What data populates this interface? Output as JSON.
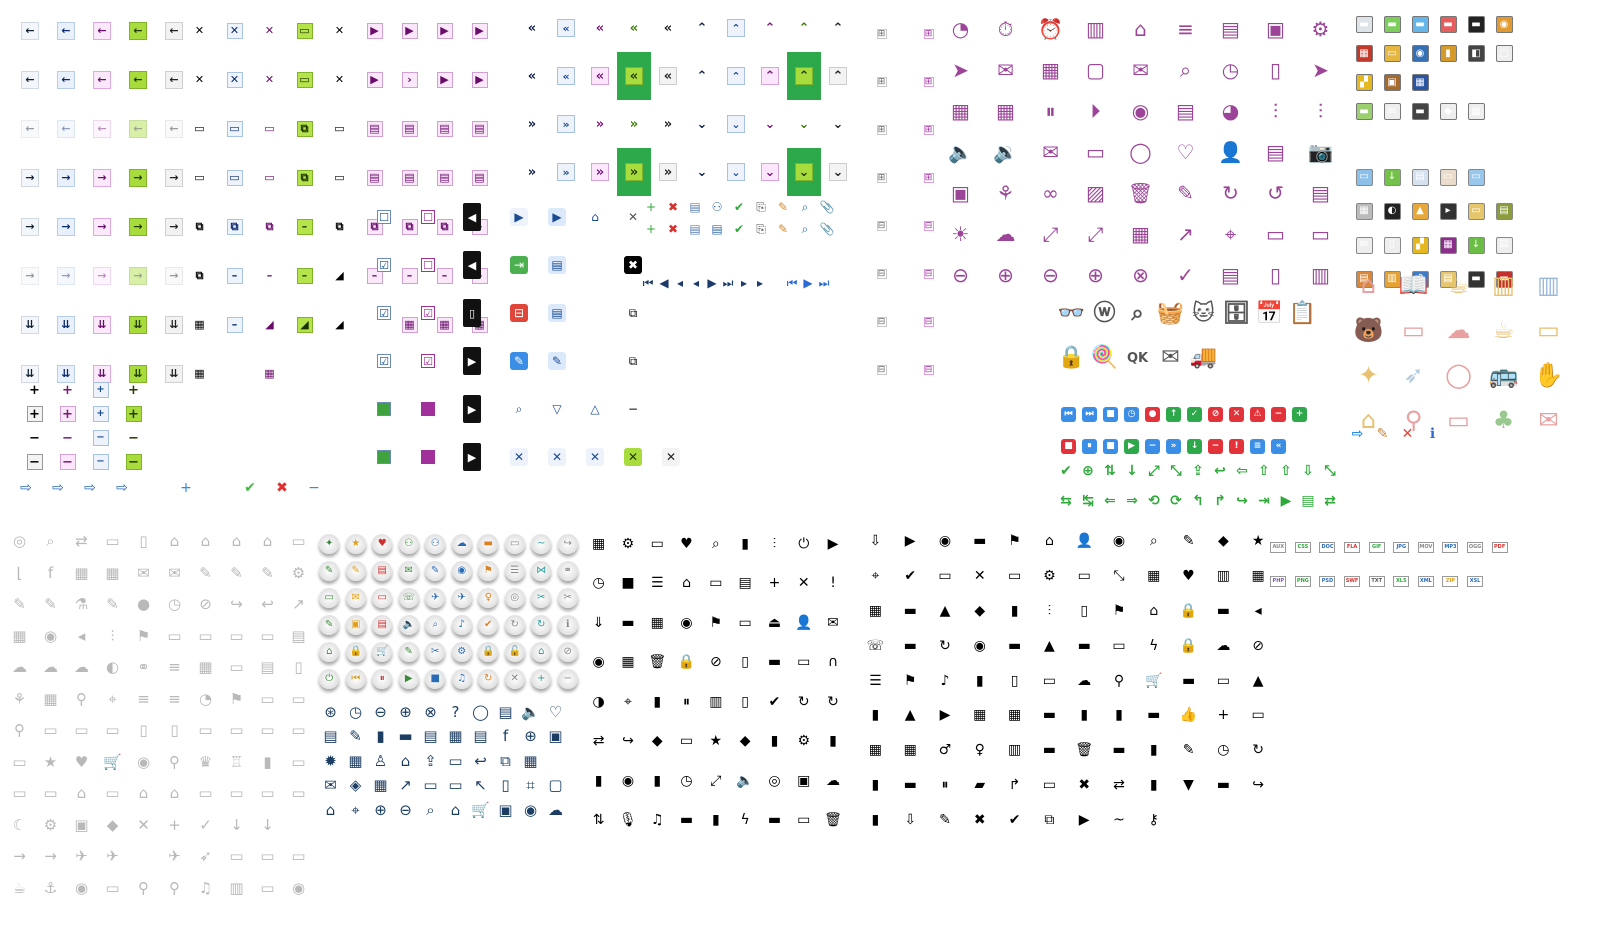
{
  "sheet": {
    "arrows": [
      [
        "←",
        "←",
        "←",
        "←",
        "←"
      ],
      [
        "←",
        "←",
        "←",
        "←",
        "←"
      ],
      [
        "←",
        "←",
        "←",
        "←",
        "←"
      ],
      [
        "→",
        "→",
        "→",
        "→",
        "→"
      ],
      [
        "→",
        "→",
        "→",
        "→",
        "→"
      ],
      [
        "→",
        "→",
        "→",
        "→",
        "→"
      ],
      [
        "⇊",
        "⇊",
        "⇊",
        "⇊",
        "⇊"
      ],
      [
        "⇊",
        "⇊",
        "⇊",
        "⇊",
        "⇊"
      ]
    ],
    "plus_minus": [
      "+",
      "+",
      "+",
      "+",
      "+",
      "+",
      "+",
      "+",
      "−",
      "−",
      "−",
      "−",
      "−",
      "−",
      "−",
      "−"
    ],
    "bottom_row": [
      "⇨",
      "⇨",
      "⇨",
      "⇨",
      "",
      "+",
      "",
      "✔",
      "✖",
      "−"
    ],
    "window_controls": [
      "✕",
      "✕",
      "✕",
      "▭",
      "✕",
      "▶",
      "▶",
      "▶",
      "▶",
      "✕",
      "✕",
      "✕",
      "▭",
      "✕",
      "▶",
      "›",
      "▶",
      "▶",
      "▭",
      "▭",
      "▭",
      "⧉",
      "▭",
      "▤",
      "▤",
      "▤",
      "▤",
      "▭",
      "▭",
      "▭",
      "⧉",
      "▭",
      "▤",
      "▤",
      "▤",
      "▤",
      "⧉",
      "⧉",
      "⧉",
      "–",
      "⧉",
      "⧉",
      "⧉",
      "⧉",
      "–",
      "⧉",
      "–",
      "–",
      "–",
      "◢",
      "–",
      "–",
      "–",
      "–",
      "▦",
      "–",
      "◢",
      "◢",
      "◢",
      "",
      "▦",
      "▦",
      "▦",
      "▦",
      "",
      "▦"
    ],
    "checks": [
      "☐",
      "☐",
      "◀",
      "☑",
      "☐",
      "◀",
      "☑",
      "☑",
      "▯",
      "☑",
      "☑",
      "▶",
      "■",
      "■",
      "▶",
      "■",
      "■",
      "▶"
    ],
    "chevrons": [
      [
        "«",
        "«",
        "«",
        "«",
        "«",
        "⌃",
        "⌃",
        "⌃",
        "⌃",
        "⌃"
      ],
      [
        "«",
        "«",
        "«",
        "«",
        "«",
        "⌃",
        "⌃",
        "⌃",
        "⌃",
        "⌃"
      ],
      [
        "»",
        "»",
        "»",
        "»",
        "»",
        "⌄",
        "⌄",
        "⌄",
        "⌄",
        "⌄"
      ],
      [
        "»",
        "»",
        "»",
        "»",
        "»",
        "⌄",
        "⌄",
        "⌄",
        "⌄",
        "⌄"
      ]
    ],
    "misc_buttons": [
      "▶",
      "▶",
      "⌂",
      "✕",
      "",
      "⇥",
      "▤",
      "",
      "✖",
      "",
      "⊟",
      "▤",
      "",
      "⧉",
      "",
      "✎",
      "✎",
      "",
      "⧉",
      "",
      "⌕",
      "▽",
      "△",
      "−",
      "",
      "✕",
      "✕",
      "✕",
      "✕",
      "✕"
    ],
    "toolbar": [
      "+",
      "✖",
      "▤",
      "⚇",
      "✔",
      "⎘",
      "✎",
      "⌕",
      "📎",
      "+",
      "✖",
      "▤",
      "▤",
      "✔",
      "⎘",
      "✎",
      "⌕",
      "📎"
    ],
    "nav": [
      "⏮",
      "◀",
      "◂",
      "◂",
      "▶",
      "⏭",
      "▸",
      "▸",
      "",
      "⏮",
      "▶",
      "⏭"
    ],
    "tree": [
      "⊞",
      "⊞",
      "⊞",
      "⊞",
      "⊞",
      "⊞",
      "⊞",
      "⊞",
      "⊟",
      "⊟",
      "⊟",
      "⊟",
      "⊟",
      "⊟",
      "⊟",
      "⊟",
      "",
      "",
      "",
      "",
      "",
      ""
    ],
    "outline_icons": [
      "◔",
      "⏱",
      "⏰",
      "▥",
      "⌂",
      "≡",
      "▤",
      "▣",
      "⚙",
      "➤",
      "✉",
      "▦",
      "▢",
      "✉",
      "⌕",
      "◷",
      "▯",
      "➤",
      "▦",
      "▦",
      "⏸",
      "⏵",
      "◉",
      "▤",
      "◕",
      "⫶",
      "⫶",
      "🔈",
      "🔉",
      "✉",
      "▭",
      "◯",
      "♡",
      "👤",
      "▤",
      "📷",
      "▣",
      "⚘",
      "∞",
      "▨",
      "🗑",
      "✎",
      "↻",
      "↺",
      "▤",
      "☀",
      "☁",
      "⤢",
      "⤢",
      "▦",
      "↗",
      "⌖",
      "▭",
      "▭",
      "⊖",
      "⊕",
      "⊖",
      "⊕",
      "⊗",
      "✓",
      "▤",
      "▯",
      "▥"
    ],
    "cartoon_icons": [
      "👓",
      "ⓦ",
      "⌕",
      "🧺",
      "🐱",
      "🗄",
      "📅",
      "📋",
      "🔒",
      "🍭",
      "QK",
      "✉",
      "🚚",
      "",
      "",
      ""
    ],
    "media_buttons": [
      [
        "⏮",
        "b"
      ],
      [
        "⏭",
        "b"
      ],
      [
        "■",
        "b"
      ],
      [
        "◷",
        "b"
      ],
      [
        "●",
        "r"
      ],
      [
        "↑",
        "g"
      ],
      [
        "✓",
        "g"
      ],
      [
        "⊘",
        "r"
      ],
      [
        "✕",
        "r"
      ],
      [
        "⚠",
        "r"
      ],
      [
        "−",
        "r"
      ],
      [
        "+",
        "g"
      ],
      [
        "",
        ""
      ],
      [
        "",
        ""
      ],
      [
        "■",
        "r"
      ],
      [
        "⏸",
        "b"
      ],
      [
        "■",
        "b"
      ],
      [
        "▶",
        "g"
      ],
      [
        "−",
        "b"
      ],
      [
        "»",
        "b"
      ],
      [
        "↓",
        "g"
      ],
      [
        "−",
        "r"
      ],
      [
        "!",
        "r"
      ],
      [
        "≡",
        "b"
      ],
      [
        "«",
        "b"
      ],
      [
        "",
        ""
      ],
      [
        "",
        ""
      ],
      [
        "",
        ""
      ]
    ],
    "extra_media": [
      "⇨",
      "✎",
      "✕",
      "ℹ"
    ],
    "green_arrows": [
      "✔",
      "⊕",
      "⇅",
      "↓",
      "⤢",
      "⤡",
      "⇪",
      "↩",
      "⇦",
      "⇧",
      "⇧",
      "⇩",
      "⤡",
      "",
      "⇆",
      "↹",
      "⇐",
      "⇒",
      "⟲",
      "⟳",
      "↰",
      "↱",
      "↪",
      "⇥",
      "▶",
      "▤",
      "⇄",
      ""
    ],
    "app_icons": [
      [
        "▬",
        "#dfe4e8"
      ],
      [
        "▬",
        "#7ccf5a"
      ],
      [
        "▬",
        "#64b6ea"
      ],
      [
        "▬",
        "#e65d5d"
      ],
      [
        "▬",
        "#222"
      ],
      [
        "◉",
        "#e19930"
      ],
      [
        "▦",
        "#c0392b"
      ],
      [
        "▭",
        "#e6b642"
      ],
      [
        "◉",
        "#3570b5"
      ],
      [
        "▮",
        "#d49a2c"
      ],
      [
        "◧",
        "#444"
      ],
      [
        "▢",
        "#eee"
      ],
      [
        "▞",
        "#e5b822"
      ],
      [
        "▣",
        "#a66a2a"
      ],
      [
        "▦",
        "#2955a3"
      ],
      [
        "",
        "#fff"
      ],
      [
        "",
        "#fff"
      ],
      [
        "",
        "#fff"
      ],
      [
        "▬",
        "#9ccf70"
      ],
      [
        "✉",
        "#eee"
      ],
      [
        "▬",
        "#444"
      ],
      [
        "◆",
        "#eee"
      ],
      [
        "▦",
        "#eee"
      ],
      [
        "",
        "#fff"
      ]
    ],
    "app_icons_2": [
      [
        "▭",
        "#8cc0e8"
      ],
      [
        "↓",
        "#74c24a"
      ],
      [
        "▤",
        "#d6e1f0"
      ],
      [
        "▭",
        "#e9dccb"
      ],
      [
        "▭",
        "#99c6eb"
      ],
      [
        "",
        "#fff"
      ],
      [
        "▦",
        "#bbb"
      ],
      [
        "◐",
        "#222"
      ],
      [
        "▲",
        "#e6a838"
      ],
      [
        "▸",
        "#333"
      ],
      [
        "▭",
        "#e6c66b"
      ],
      [
        "▤",
        "#8a9c3c"
      ],
      [
        "✉",
        "#eee"
      ],
      [
        "▯",
        "#eee"
      ],
      [
        "▞",
        "#e5b822"
      ],
      [
        "▦",
        "#8a2f8a"
      ],
      [
        "↓",
        "#6cbd45"
      ],
      [
        "⚄",
        "#eee"
      ],
      [
        "▤",
        "#d8883a"
      ],
      [
        "▥",
        "#e6a230"
      ],
      [
        "♫",
        "#3e7bc9"
      ],
      [
        "▤",
        "#e6c66b"
      ],
      [
        "▬",
        "#333"
      ],
      [
        "▬",
        "#c4302b"
      ]
    ],
    "pastel_icons": [
      "⌂",
      "📖",
      "☕",
      "▥",
      "▥",
      "🐻",
      "▭",
      "☁",
      "☕",
      "▭",
      "✦",
      "➶",
      "◯",
      "🚌",
      "✋",
      "⌂",
      "⚲",
      "▭",
      "♣",
      "✉"
    ],
    "gray_icons": [
      "◎",
      "⌕",
      "⇄",
      "▭",
      "▯",
      "⌂",
      "⌂",
      "⌂",
      "⌂",
      "▭",
      "⌊",
      "f",
      "▦",
      "▦",
      "✉",
      "✉",
      "✎",
      "✎",
      "✎",
      "⚙",
      "✎",
      "✎",
      "⚗",
      "✎",
      "●",
      "◷",
      "⊘",
      "↪",
      "↩",
      "↗",
      "▦",
      "◉",
      "◂",
      "⫶",
      "⚑",
      "▭",
      "▭",
      "▭",
      "▭",
      "▤",
      "☁",
      "☁",
      "☁",
      "◐",
      "⚭",
      "≡",
      "▦",
      "▭",
      "▤",
      "▯",
      "⚘",
      "▦",
      "⚲",
      "⌖",
      "≡",
      "≡",
      "◔",
      "⚑",
      "▭",
      "▭",
      "⚲",
      "▭",
      "▭",
      "▭",
      "▯",
      "▯",
      "▭",
      "▭",
      "▭",
      "▭",
      "▭",
      "★",
      "♥",
      "🛒",
      "◉",
      "⚲",
      "♛",
      "♖",
      "▮",
      "▭",
      "▭",
      "▭",
      "⌂",
      "▭",
      "⌂",
      "⌂",
      "▭",
      "▭",
      "▭",
      "▭",
      "☾",
      "⚙",
      "▣",
      "◆",
      "✕",
      "+",
      "✓",
      "↓",
      "↓",
      "",
      "→",
      "→",
      "✈",
      "✈",
      "",
      "✈",
      "➶",
      "▭",
      "▭",
      "▭",
      "☕",
      "⚓",
      "◉",
      "▭",
      "⚲",
      "⚲",
      "♫",
      "▥",
      "▭",
      "◉"
    ],
    "round_buttons": [
      "✦",
      "★",
      "♥",
      "⚇",
      "⚇",
      "☁",
      "▬",
      "▭",
      "~",
      "↪",
      "✎",
      "✎",
      "▤",
      "✉",
      "✎",
      "◉",
      "⚑",
      "☰",
      "⋈",
      "⚭",
      "▭",
      "✉",
      "▭",
      "☏",
      "✈",
      "✈",
      "♀",
      "◎",
      "✂",
      "✂",
      "✎",
      "▣",
      "▤",
      "🔈",
      "⌕",
      "♪",
      "✔",
      "↻",
      "↻",
      "ℹ",
      "⌂",
      "🔒",
      "🛒",
      "✎",
      "✂",
      "⚙",
      "🔒",
      "🔓",
      "⌂",
      "⊘",
      "⏻",
      "⏮",
      "⏸",
      "▶",
      "■",
      "♫",
      "↻",
      "✕",
      "+",
      "−"
    ],
    "navy_icons": [
      "⊛",
      "◷",
      "⊖",
      "⊕",
      "⊗",
      "?",
      "◯",
      "▤",
      "🔈",
      "♡",
      "▤",
      "✎",
      "▮",
      "▬",
      "▤",
      "▦",
      "▤",
      "f",
      "⊕",
      "▣",
      "✹",
      "▦",
      "♙",
      "⌂",
      "⇪",
      "▭",
      "↩",
      "⧉",
      "▦",
      "",
      "✉",
      "◈",
      "▦",
      "↗",
      "▭",
      "▭",
      "↖",
      "▯",
      "⌗",
      "▢",
      "⌂",
      "⌖",
      "⊕",
      "⊖",
      "⌕",
      "⌂",
      "🛒",
      "▣",
      "◉",
      "☁"
    ],
    "black_icons_1": [
      "▦",
      "⚙",
      "▭",
      "♥",
      "⌕",
      "▮",
      "⫶",
      "⏻",
      "▶",
      "◷",
      "■",
      "☰",
      "⌂",
      "▭",
      "▤",
      "+",
      "✕",
      "!",
      "⇓",
      "▬",
      "▦",
      "◉",
      "⚑",
      "▭",
      "⏏",
      "👤",
      "✉",
      "◉",
      "▦",
      "🗑",
      "🔒",
      "⊘",
      "▯",
      "▬",
      "▭",
      "∩",
      "◑",
      "⌖",
      "▮",
      "⏸",
      "▥",
      "▯",
      "✔",
      "↻",
      "↻",
      "⇄",
      "↪",
      "◆",
      "▭",
      "★",
      "◆",
      "▮",
      "⚙",
      "▮",
      "▮",
      "◉",
      "▮",
      "◷",
      "⤢",
      "🔈",
      "◎",
      "▣",
      "☁",
      "⇅",
      "🎙",
      "♫",
      "▬",
      "▮",
      "ϟ",
      "▬",
      "▭",
      "🗑"
    ],
    "black_icons_2": [
      "⇩",
      "▶",
      "◉",
      "▬",
      "⚑",
      "⌂",
      "👤",
      "◉",
      "⌕",
      "✎",
      "◆",
      "★",
      "⌖",
      "✔",
      "▭",
      "✕",
      "▭",
      "⚙",
      "▭",
      "⤡",
      "▦",
      "♥",
      "▥",
      "▦",
      "▦",
      "▬",
      "▲",
      "◆",
      "▮",
      "⫶",
      "▯",
      "⚑",
      "⌂",
      "🔒",
      "▬",
      "◂",
      "☏",
      "▬",
      "↻",
      "◉",
      "▬",
      "▲",
      "▬",
      "▭",
      "ϟ",
      "🔒",
      "☁",
      "⊘",
      "☰",
      "⚑",
      "♪",
      "▮",
      "▯",
      "▭",
      "☁",
      "⚲",
      "🛒",
      "▬",
      "▭",
      "▲",
      "▮",
      "▲",
      "▶",
      "▦",
      "▦",
      "▬",
      "▮",
      "▮",
      "▬",
      "👍",
      "+",
      "▭",
      "▦",
      "▦",
      "♂",
      "♀",
      "▥",
      "▬",
      "🗑",
      "▬",
      "▮",
      "✎",
      "◷",
      "↻",
      "▮",
      "▬",
      "⏸",
      "▰",
      "↱",
      "▭",
      "✖",
      "⇄",
      "▮",
      "▼",
      "▬",
      "↪",
      "▮",
      "⇩",
      "✎",
      "✖",
      "✔",
      "⧉",
      "▶",
      "~",
      "⚷",
      "",
      "",
      ""
    ],
    "file_types": [
      "AUX",
      "CSS",
      "DOC",
      "FLA",
      "GIF",
      "JPG",
      "MOV",
      "MP3",
      "OGG",
      "PDF",
      "PHP",
      "PNG",
      "PSD",
      "SWF",
      "TXT",
      "XLS",
      "XML",
      "ZIP",
      "XSL",
      ""
    ],
    "colors": {
      "green_accent": "#a8dc3c",
      "purple_accent": "#9c4598",
      "navy_accent": "#1d3e63",
      "gray_icons": "#b9b9b9"
    }
  }
}
